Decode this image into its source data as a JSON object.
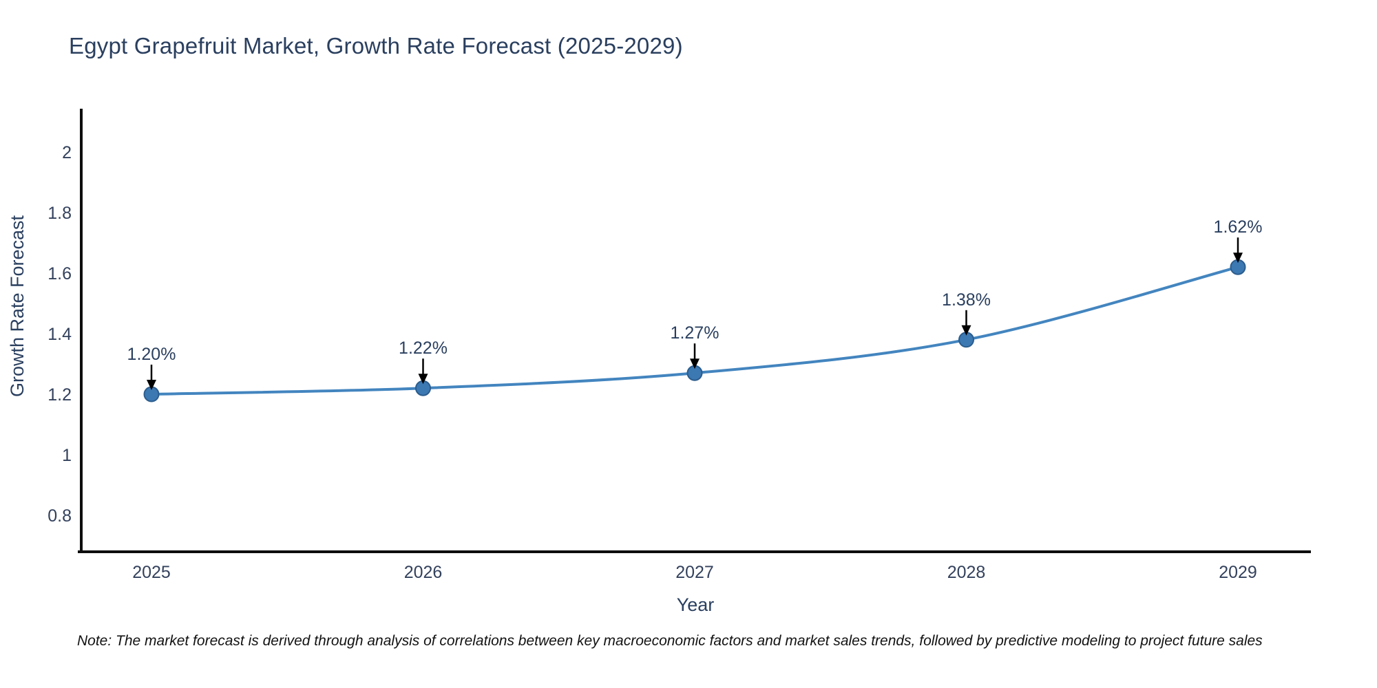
{
  "page": {
    "background": "#ffffff"
  },
  "note": "Note: The market forecast is derived through analysis of correlations between key macroeconomic factors and market sales trends, followed by predictive modeling to project future sales",
  "chart_data": {
    "type": "line",
    "title": "Egypt Grapefruit Market, Growth Rate Forecast (2025-2029)",
    "xlabel": "Year",
    "ylabel": "Growth Rate Forecast",
    "categories": [
      "2025",
      "2026",
      "2027",
      "2028",
      "2029"
    ],
    "series": [
      {
        "name": "Growth Rate Forecast",
        "values": [
          1.2,
          1.22,
          1.27,
          1.38,
          1.62
        ]
      }
    ],
    "point_labels": [
      "1.20%",
      "1.22%",
      "1.27%",
      "1.38%",
      "1.62%"
    ],
    "ytick_values": [
      2,
      1.8,
      1.6,
      1.4,
      1.2,
      1,
      0.8
    ],
    "ytick_labels": [
      "2",
      "1.8",
      "1.6",
      "1.4",
      "1.2",
      "1",
      "0.8"
    ],
    "ylim": [
      0.675,
      2.16
    ],
    "grid": false,
    "legend_position": "none",
    "line_shape": "spline",
    "colors": {
      "line": "#4385bf",
      "marker_fill": "#3c78b2",
      "marker_stroke": "#2b5d8e",
      "axis": "#0d0d0d",
      "tick_text": "#33415c",
      "axis_title_text": "#2a3f5f",
      "annotation_text": "#2a3f5f",
      "annotation_arrow": "#000000",
      "note_text": "#121212",
      "background": "#ffffff"
    }
  }
}
